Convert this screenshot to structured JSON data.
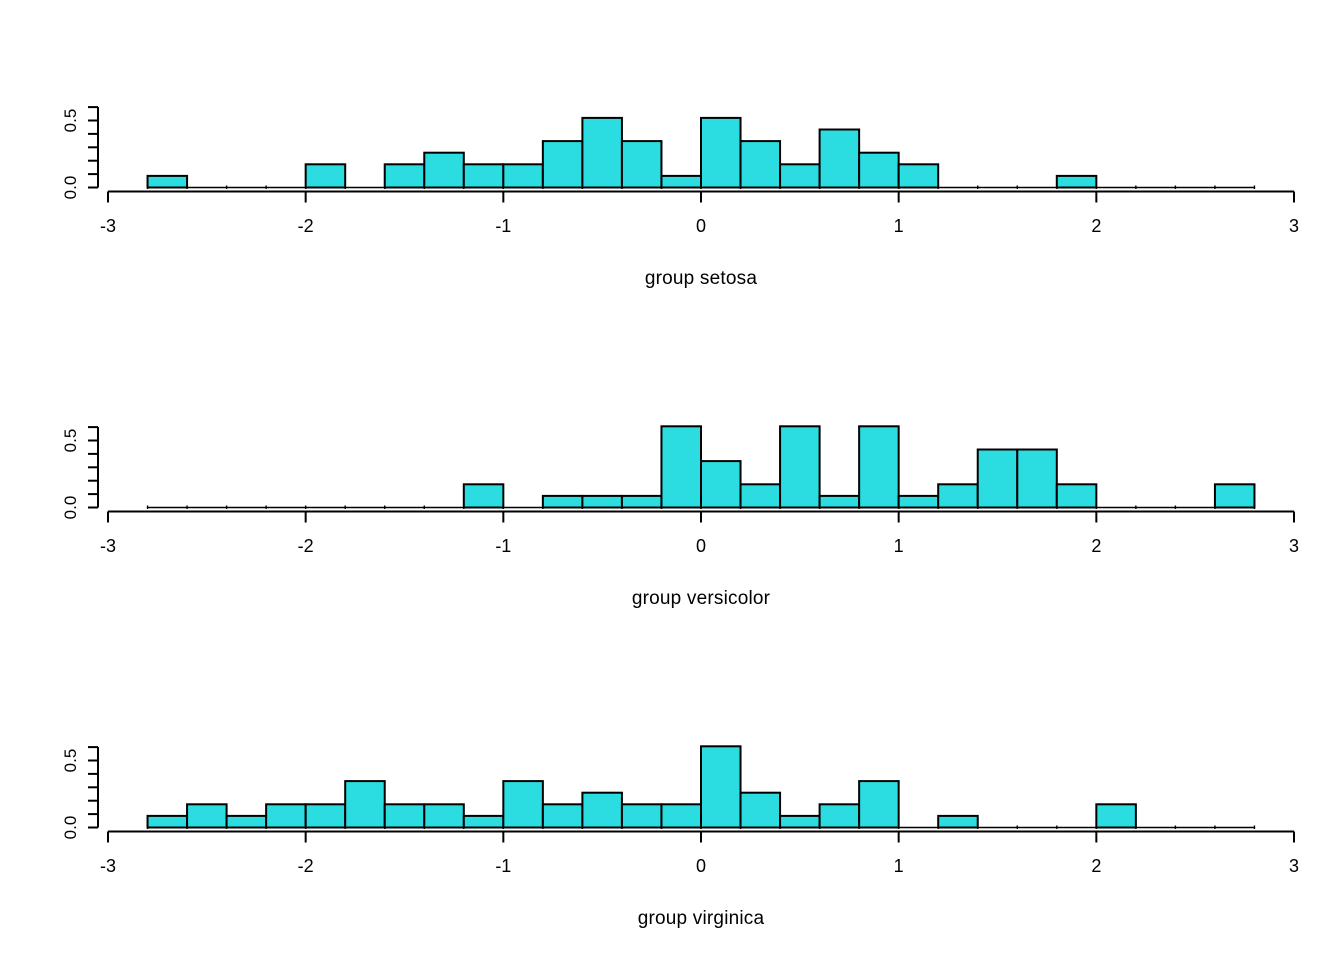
{
  "style": {
    "background": "#ffffff",
    "bar_fill": "#2bdde1",
    "bar_stroke": "#000000",
    "axis_color": "#000000",
    "text_color": "#000000"
  },
  "chart_data": [
    {
      "type": "bar",
      "subtype": "histogram",
      "group_label": "group setosa",
      "n_observations": 50,
      "xlim": [
        -3,
        3
      ],
      "ylim": [
        0,
        0.6
      ],
      "x_ticks": [
        -3,
        -2,
        -1,
        0,
        1,
        2,
        3
      ],
      "x_tick_labels": [
        "-3",
        "-2",
        "-1",
        "0",
        "1",
        "2",
        "3"
      ],
      "y_ticks": [
        0,
        0.1,
        0.2,
        0.3,
        0.4,
        0.5,
        0.6
      ],
      "y_axis_labels": [
        {
          "value": 0.0,
          "label": "0.0"
        },
        {
          "value": 0.5,
          "label": "0.5"
        }
      ],
      "bin_start": -2.8,
      "bin_width": 0.2,
      "baseline_extent": [
        -2.8,
        2.8
      ],
      "grid": false,
      "counts": [
        1,
        0,
        0,
        0,
        2,
        0,
        2,
        3,
        2,
        2,
        4,
        6,
        4,
        1,
        6,
        4,
        2,
        5,
        3,
        2,
        0,
        0,
        0,
        1,
        0,
        0,
        0,
        0
      ],
      "densities": [
        0.08,
        0,
        0,
        0,
        0.17,
        0,
        0.17,
        0.25,
        0.17,
        0.17,
        0.33,
        0.5,
        0.33,
        0.08,
        0.5,
        0.33,
        0.17,
        0.42,
        0.25,
        0.17,
        0,
        0,
        0,
        0.08,
        0,
        0,
        0,
        0
      ]
    },
    {
      "type": "bar",
      "subtype": "histogram",
      "group_label": "group versicolor",
      "n_observations": 50,
      "xlim": [
        -3,
        3
      ],
      "ylim": [
        0,
        0.6
      ],
      "x_ticks": [
        -3,
        -2,
        -1,
        0,
        1,
        2,
        3
      ],
      "x_tick_labels": [
        "-3",
        "-2",
        "-1",
        "0",
        "1",
        "2",
        "3"
      ],
      "y_ticks": [
        0,
        0.1,
        0.2,
        0.3,
        0.4,
        0.5,
        0.6
      ],
      "y_axis_labels": [
        {
          "value": 0.0,
          "label": "0.0"
        },
        {
          "value": 0.5,
          "label": "0.5"
        }
      ],
      "bin_start": -2.8,
      "bin_width": 0.2,
      "baseline_extent": [
        -2.8,
        2.8
      ],
      "grid": false,
      "counts": [
        0,
        0,
        0,
        0,
        0,
        0,
        0,
        0,
        2,
        0,
        1,
        1,
        1,
        7,
        4,
        2,
        7,
        1,
        7,
        1,
        2,
        5,
        5,
        2,
        0,
        0,
        0,
        2
      ],
      "densities": [
        0,
        0,
        0,
        0,
        0,
        0,
        0,
        0,
        0.17,
        0,
        0.08,
        0.08,
        0.08,
        0.58,
        0.33,
        0.17,
        0.58,
        0.08,
        0.58,
        0.08,
        0.17,
        0.42,
        0.42,
        0.17,
        0,
        0,
        0,
        0.17
      ]
    },
    {
      "type": "bar",
      "subtype": "histogram",
      "group_label": "group virginica",
      "n_observations": 50,
      "xlim": [
        -3,
        3
      ],
      "ylim": [
        0,
        0.6
      ],
      "x_ticks": [
        -3,
        -2,
        -1,
        0,
        1,
        2,
        3
      ],
      "x_tick_labels": [
        "-3",
        "-2",
        "-1",
        "0",
        "1",
        "2",
        "3"
      ],
      "y_ticks": [
        0,
        0.1,
        0.2,
        0.3,
        0.4,
        0.5,
        0.6
      ],
      "y_axis_labels": [
        {
          "value": 0.0,
          "label": "0.0"
        },
        {
          "value": 0.5,
          "label": "0.5"
        }
      ],
      "bin_start": -2.8,
      "bin_width": 0.2,
      "baseline_extent": [
        -2.8,
        2.8
      ],
      "grid": false,
      "counts": [
        1,
        2,
        1,
        2,
        2,
        4,
        2,
        2,
        1,
        4,
        2,
        3,
        2,
        2,
        7,
        3,
        1,
        2,
        4,
        0,
        1,
        0,
        0,
        0,
        2,
        0,
        0,
        0
      ],
      "densities": [
        0.08,
        0.17,
        0.08,
        0.17,
        0.17,
        0.33,
        0.17,
        0.17,
        0.08,
        0.33,
        0.17,
        0.25,
        0.17,
        0.17,
        0.58,
        0.25,
        0.08,
        0.17,
        0.33,
        0,
        0.08,
        0,
        0,
        0,
        0.17,
        0,
        0,
        0
      ]
    }
  ]
}
